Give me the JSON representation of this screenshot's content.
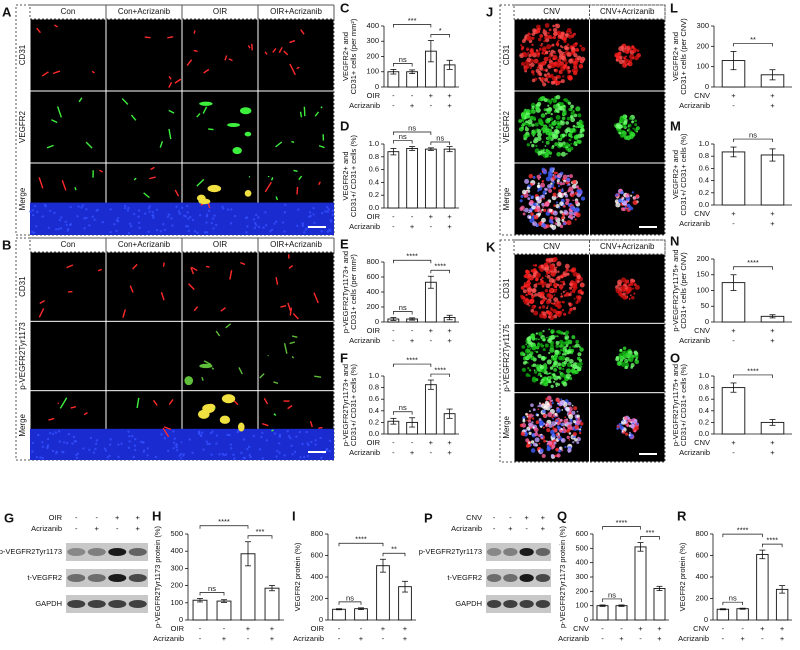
{
  "image_panels": [
    {
      "letter": "A",
      "columns": [
        "Con",
        "Con+Acrizanib",
        "OIR",
        "OIR+Acrizanib"
      ],
      "rows": [
        "CD31",
        "VEGFR2",
        "Merge"
      ]
    },
    {
      "letter": "B",
      "columns": [
        "Con",
        "Con+Acrizanib",
        "OIR",
        "OIR+Acrizanib"
      ],
      "rows": [
        "CD31",
        "p-VEGFR2Tyr1173",
        "Merge"
      ]
    },
    {
      "letter": "J",
      "columns": [
        "CNV",
        "CNV+Acrizanib"
      ],
      "rows": [
        "CD31",
        "VEGFR2",
        "Merge"
      ]
    },
    {
      "letter": "K",
      "columns": [
        "CNV",
        "CNV+Acrizanib"
      ],
      "rows": [
        "CD31",
        "p-VEGFR2Tyr1175",
        "Merge"
      ]
    }
  ],
  "blots": [
    {
      "letter": "G",
      "conditions": [
        {
          "name": "OIR",
          "marks": [
            "-",
            "-",
            "+",
            "+"
          ]
        },
        {
          "name": "Acrizanib",
          "marks": [
            "-",
            "+",
            "-",
            "+"
          ]
        }
      ],
      "bands": [
        "p-VEGFR2Tyr1173",
        "t-VEGFR2",
        "GAPDH"
      ]
    },
    {
      "letter": "P",
      "conditions": [
        {
          "name": "CNV",
          "marks": [
            "-",
            "-",
            "+",
            "+"
          ]
        },
        {
          "name": "Acrizanib",
          "marks": [
            "-",
            "+",
            "-",
            "+"
          ]
        }
      ],
      "bands": [
        "p-VEGFR2Tyr1173",
        "t-VEGFR2",
        "GAPDH"
      ]
    }
  ],
  "chart_data": [
    {
      "type": "bar",
      "letter": "C",
      "ylabel": [
        "VEGFR2+ and",
        "CD31+ cells (per mm²)"
      ],
      "values": [
        100,
        100,
        235,
        145
      ],
      "errors": [
        15,
        12,
        70,
        30
      ],
      "ylim": [
        0,
        400
      ],
      "yticks": [
        0,
        100,
        200,
        300,
        400
      ],
      "annotations": [
        "ns",
        "***",
        "*"
      ],
      "conditions": [
        {
          "name": "OIR",
          "marks": [
            "-",
            "-",
            "+",
            "+"
          ]
        },
        {
          "name": "Acrizanib",
          "marks": [
            "-",
            "+",
            "-",
            "+"
          ]
        }
      ]
    },
    {
      "type": "bar",
      "letter": "D",
      "ylabel": [
        "VEGFR2+ and",
        "CD31+/ CD31+ cells (%)"
      ],
      "values": [
        0.88,
        0.93,
        0.92,
        0.92
      ],
      "errors": [
        0.05,
        0.03,
        0.02,
        0.04
      ],
      "ylim": [
        0,
        1
      ],
      "yticks": [
        {
          "value": 0,
          "label": "0.0"
        },
        0.2,
        0.4,
        0.6,
        0.8,
        {
          "value": 1,
          "label": "1.0"
        }
      ],
      "annotations": [
        "ns",
        "ns",
        "ns"
      ],
      "conditions": [
        {
          "name": "OIR",
          "marks": [
            "-",
            "-",
            "+",
            "+"
          ]
        },
        {
          "name": "Acrizanib",
          "marks": [
            "-",
            "+",
            "-",
            "+"
          ]
        }
      ]
    },
    {
      "type": "bar",
      "letter": "E",
      "ylabel": [
        "p-VEGFR2Tyr1173+ and",
        "CD31+ cells (per mm²)"
      ],
      "values": [
        40,
        40,
        530,
        60
      ],
      "errors": [
        20,
        15,
        80,
        30
      ],
      "ylim": [
        0,
        800
      ],
      "yticks": [
        0,
        200,
        400,
        600,
        800
      ],
      "annotations": [
        "ns",
        "****",
        "****"
      ],
      "conditions": [
        {
          "name": "OIR",
          "marks": [
            "-",
            "-",
            "+",
            "+"
          ]
        },
        {
          "name": "Acrizanib",
          "marks": [
            "-",
            "+",
            "-",
            "+"
          ]
        }
      ]
    },
    {
      "type": "bar",
      "letter": "F",
      "ylabel": [
        "p-VEGFR2Tyr1173+ and",
        "CD31+/ CD31+ cells (%)"
      ],
      "values": [
        0.22,
        0.2,
        0.85,
        0.35
      ],
      "errors": [
        0.05,
        0.08,
        0.08,
        0.08
      ],
      "ylim": [
        0,
        1
      ],
      "yticks": [
        {
          "value": 0,
          "label": "0.0"
        },
        0.2,
        0.4,
        0.6,
        0.8,
        {
          "value": 1,
          "label": "1.0"
        }
      ],
      "annotations": [
        "ns",
        "****",
        "****"
      ],
      "conditions": [
        {
          "name": "OIR",
          "marks": [
            "-",
            "-",
            "+",
            "+"
          ]
        },
        {
          "name": "Acrizanib",
          "marks": [
            "-",
            "+",
            "-",
            "+"
          ]
        }
      ]
    },
    {
      "type": "bar",
      "letter": "H",
      "ylabel": [
        "p-VEGFR2Tyr1173 protein (%)"
      ],
      "values": [
        115,
        110,
        385,
        185
      ],
      "errors": [
        10,
        8,
        70,
        15
      ],
      "ylim": [
        0,
        500
      ],
      "yticks": [
        0,
        100,
        200,
        300,
        400,
        500
      ],
      "annotations": [
        "ns",
        "****",
        "***"
      ],
      "conditions": [
        {
          "name": "OIR",
          "marks": [
            "-",
            "-",
            "+",
            "+"
          ]
        },
        {
          "name": "Acrizanib",
          "marks": [
            "-",
            "+",
            "-",
            "+"
          ]
        }
      ]
    },
    {
      "type": "bar",
      "letter": "I",
      "ylabel": [
        "VEGFR2 protein (%)"
      ],
      "values": [
        100,
        105,
        505,
        310
      ],
      "errors": [
        5,
        8,
        60,
        50
      ],
      "ylim": [
        0,
        800
      ],
      "yticks": [
        0,
        200,
        400,
        600,
        800
      ],
      "annotations": [
        "ns",
        "****",
        "**"
      ],
      "conditions": [
        {
          "name": "OIR",
          "marks": [
            "-",
            "-",
            "+",
            "+"
          ]
        },
        {
          "name": "Acrizanib",
          "marks": [
            "-",
            "+",
            "-",
            "+"
          ]
        }
      ]
    },
    {
      "type": "bar",
      "letter": "Q",
      "ylabel": [
        "p-VEGFR2Tyr1173 protein (%)"
      ],
      "values": [
        100,
        100,
        510,
        220
      ],
      "errors": [
        5,
        5,
        30,
        15
      ],
      "ylim": [
        0,
        600
      ],
      "yticks": [
        0,
        100,
        200,
        300,
        400,
        500,
        600
      ],
      "annotations": [
        "ns",
        "****",
        "***"
      ],
      "conditions": [
        {
          "name": "CNV",
          "marks": [
            "-",
            "-",
            "+",
            "+"
          ]
        },
        {
          "name": "Acrizanib",
          "marks": [
            "-",
            "+",
            "-",
            "+"
          ]
        }
      ]
    },
    {
      "type": "bar",
      "letter": "R",
      "ylabel": [
        "VEGFR2 protein (%)"
      ],
      "values": [
        100,
        105,
        610,
        285
      ],
      "errors": [
        5,
        5,
        40,
        35
      ],
      "ylim": [
        0,
        800
      ],
      "yticks": [
        0,
        200,
        400,
        600,
        800
      ],
      "annotations": [
        "ns",
        "****",
        "****"
      ],
      "conditions": [
        {
          "name": "CNV",
          "marks": [
            "-",
            "-",
            "+",
            "+"
          ]
        },
        {
          "name": "Acrizanib",
          "marks": [
            "-",
            "+",
            "-",
            "+"
          ]
        }
      ]
    },
    {
      "type": "bar",
      "letter": "L",
      "ylabel": [
        "VEGFR2+ and",
        "CD31+ cells (per CNV)"
      ],
      "values": [
        130,
        60
      ],
      "errors": [
        45,
        25
      ],
      "ylim": [
        0,
        300
      ],
      "yticks": [
        0,
        100,
        200,
        300
      ],
      "annotations": [
        "**"
      ],
      "conditions": [
        {
          "name": "CNV",
          "marks": [
            "+",
            "+"
          ]
        },
        {
          "name": "Acrizanib",
          "marks": [
            "-",
            "+"
          ]
        }
      ]
    },
    {
      "type": "bar",
      "letter": "M",
      "ylabel": [
        "VEGFR2+ and",
        "CD31+/ CD31+ cells (%)"
      ],
      "values": [
        0.87,
        0.82
      ],
      "errors": [
        0.08,
        0.1
      ],
      "ylim": [
        0,
        1
      ],
      "yticks": [
        {
          "value": 0,
          "label": "0.0"
        },
        0.2,
        0.4,
        0.6,
        0.8,
        {
          "value": 1,
          "label": "1.0"
        }
      ],
      "annotations": [
        "ns"
      ],
      "conditions": [
        {
          "name": "CNV",
          "marks": [
            "+",
            "+"
          ]
        },
        {
          "name": "Acrizanib",
          "marks": [
            "-",
            "+"
          ]
        }
      ]
    },
    {
      "type": "bar",
      "letter": "N",
      "ylabel": [
        "p-VEGFR2Tyr1175+ and",
        "CD31+ cells (per CNV)"
      ],
      "values": [
        125,
        18
      ],
      "errors": [
        25,
        5
      ],
      "ylim": [
        0,
        200
      ],
      "yticks": [
        0,
        50,
        100,
        150,
        200
      ],
      "annotations": [
        "****"
      ],
      "conditions": [
        {
          "name": "CNV",
          "marks": [
            "+",
            "+"
          ]
        },
        {
          "name": "Acrizanib",
          "marks": [
            "-",
            "+"
          ]
        }
      ]
    },
    {
      "type": "bar",
      "letter": "O",
      "ylabel": [
        "p-VEGFR2Tyr1175+ and",
        "CD31+/ CD31+ cells (%)"
      ],
      "values": [
        0.8,
        0.2
      ],
      "errors": [
        0.08,
        0.05
      ],
      "ylim": [
        0,
        1
      ],
      "yticks": [
        {
          "value": 0,
          "label": "0.0"
        },
        0.2,
        0.4,
        0.6,
        0.8,
        {
          "value": 1,
          "label": "1.0"
        }
      ],
      "annotations": [
        "****"
      ],
      "conditions": [
        {
          "name": "CNV",
          "marks": [
            "+",
            "+"
          ]
        },
        {
          "name": "Acrizanib",
          "marks": [
            "-",
            "+"
          ]
        }
      ]
    }
  ]
}
